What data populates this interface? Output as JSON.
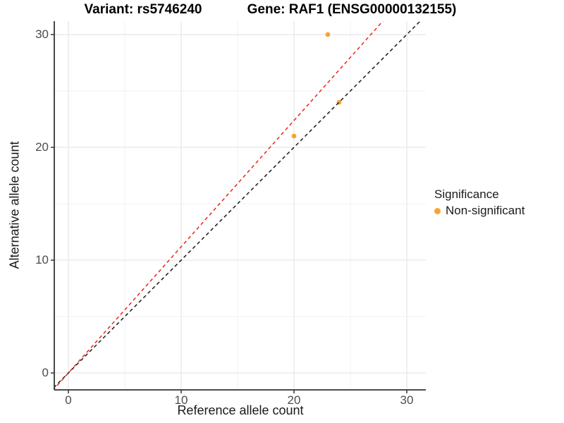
{
  "titles": {
    "left": "Variant: rs5746240",
    "right": "Gene: RAF1 (ENSG00000132155)"
  },
  "axes": {
    "x_label": "Reference allele count",
    "y_label": "Alternative allele count"
  },
  "legend": {
    "title": "Significance",
    "items": [
      {
        "label": "Non-significant",
        "color": "#F9A432"
      }
    ]
  },
  "colors": {
    "point_orange": "#F9A432",
    "identity_line": "#1a1a1a",
    "ratio_line": "#e8251d",
    "grid_major": "#e6e6e6",
    "grid_minor": "#f2f2f2",
    "axis_line": "#333333",
    "tick_text": "#4d4d4d"
  },
  "chart_data": {
    "type": "scatter",
    "title": "Variant: rs5746240 — Gene: RAF1 (ENSG00000132155)",
    "xlabel": "Reference allele count",
    "ylabel": "Alternative allele count",
    "xlim": [
      -1.5,
      31.7
    ],
    "ylim": [
      -1.5,
      31.2
    ],
    "x_major_ticks": [
      0,
      10,
      20,
      30
    ],
    "y_major_ticks": [
      0,
      10,
      20,
      30
    ],
    "x_minor_ticks": [
      5,
      15,
      25
    ],
    "y_minor_ticks": [
      5,
      15,
      25
    ],
    "grid": true,
    "legend_position": "right",
    "series": [
      {
        "name": "Non-significant",
        "color": "#F9A432",
        "points": [
          {
            "x": 20,
            "y": 21
          },
          {
            "x": 24,
            "y": 24
          },
          {
            "x": 23,
            "y": 30
          }
        ]
      }
    ],
    "lines": [
      {
        "name": "identity",
        "slope": 1.0,
        "intercept": 0,
        "style": "dashed",
        "color": "#1a1a1a"
      },
      {
        "name": "allelic-ratio",
        "slope": 1.119,
        "intercept": 0,
        "style": "dashed",
        "color": "#e8251d"
      }
    ]
  }
}
